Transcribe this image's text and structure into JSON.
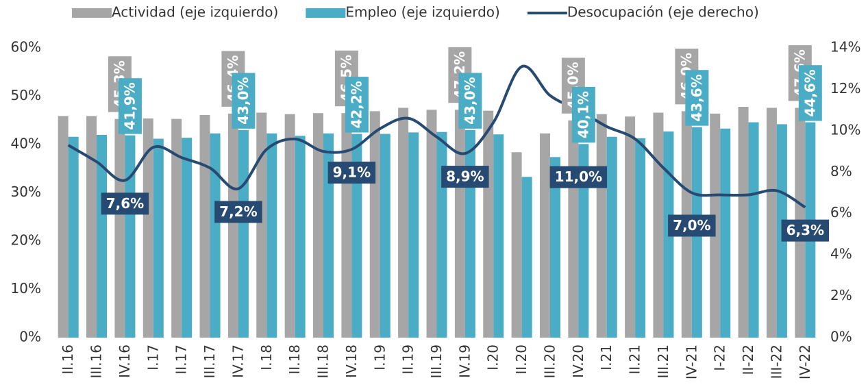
{
  "chart_data": {
    "type": "bar-line",
    "categories": [
      "II.16",
      "III.16",
      "IV.16",
      "I.17",
      "II.17",
      "III.17",
      "IV.17",
      "I.18",
      "II.18",
      "III.18",
      "IV.18",
      "I.19",
      "II.19",
      "III.19",
      "IV.19",
      "I.20",
      "II.20",
      "III.20",
      "IV.20",
      "I.21",
      "II.21",
      "III.21",
      "IV-21",
      "I-22",
      "II-22",
      "III-22",
      "IV-22"
    ],
    "series": [
      {
        "name": "Actividad (eje izquierdo)",
        "color": "#a6a6a6",
        "type": "bar",
        "values": [
          45.9,
          45.9,
          45.3,
          45.4,
          45.3,
          46.1,
          46.4,
          46.6,
          46.3,
          46.5,
          46.5,
          46.9,
          47.6,
          47.2,
          47.2,
          47.0,
          38.4,
          42.3,
          45.0,
          46.3,
          45.8,
          46.6,
          46.9,
          46.4,
          47.8,
          47.6,
          47.6
        ],
        "value_labels": [
          null,
          null,
          "45,3%",
          null,
          null,
          null,
          "46,4%",
          null,
          null,
          null,
          "46,5%",
          null,
          null,
          null,
          "47,2%",
          null,
          null,
          null,
          "45,0%",
          null,
          null,
          null,
          "46,9%",
          null,
          null,
          null,
          "47,6%"
        ]
      },
      {
        "name": "Empleo (eje izquierdo)",
        "color": "#4bacc6",
        "type": "bar",
        "values": [
          41.6,
          42.0,
          41.9,
          41.2,
          41.4,
          42.3,
          43.0,
          42.3,
          41.8,
          42.3,
          42.2,
          42.2,
          42.5,
          42.6,
          43.0,
          42.1,
          33.3,
          37.4,
          40.1,
          41.6,
          41.3,
          42.7,
          43.6,
          43.3,
          44.6,
          44.2,
          44.6
        ],
        "value_labels": [
          null,
          null,
          "41,9%",
          null,
          null,
          null,
          "43,0%",
          null,
          null,
          null,
          "42,2%",
          null,
          null,
          null,
          "43,0%",
          null,
          null,
          null,
          "40,1%",
          null,
          null,
          null,
          "43,6%",
          null,
          null,
          null,
          "44,6%"
        ]
      },
      {
        "name": "Desocupación (eje derecho)",
        "color": "#264a72",
        "type": "line",
        "axis": "y2",
        "values": [
          9.3,
          8.5,
          7.6,
          9.2,
          8.7,
          8.2,
          7.2,
          9.1,
          9.6,
          9.0,
          9.1,
          10.1,
          10.6,
          9.7,
          8.9,
          10.4,
          13.1,
          11.7,
          11.0,
          10.2,
          9.6,
          8.2,
          7.0,
          6.9,
          6.9,
          7.1,
          6.3
        ],
        "value_labels": [
          null,
          null,
          "7,6%",
          null,
          null,
          null,
          "7,2%",
          null,
          null,
          null,
          "9,1%",
          null,
          null,
          null,
          "8,9%",
          null,
          null,
          null,
          "11,0%",
          null,
          null,
          null,
          "7,0%",
          null,
          null,
          null,
          "6,3%"
        ]
      }
    ],
    "ylim": [
      0,
      60
    ],
    "yticks": [
      {
        "value": 0,
        "label": "0%"
      },
      {
        "value": 10,
        "label": "10%"
      },
      {
        "value": 20,
        "label": "20%"
      },
      {
        "value": 30,
        "label": "30%"
      },
      {
        "value": 40,
        "label": "40%"
      },
      {
        "value": 50,
        "label": "50%"
      },
      {
        "value": 60,
        "label": "60%"
      }
    ],
    "y2lim": [
      0,
      14
    ],
    "y2ticks": [
      {
        "value": 0,
        "label": "0%"
      },
      {
        "value": 2,
        "label": "2%"
      },
      {
        "value": 4,
        "label": "4%"
      },
      {
        "value": 6,
        "label": "6%"
      },
      {
        "value": 8,
        "label": "8%"
      },
      {
        "value": 10,
        "label": "10%"
      },
      {
        "value": 12,
        "label": "12%"
      },
      {
        "value": 14,
        "label": "14%"
      }
    ],
    "legend": "top"
  }
}
